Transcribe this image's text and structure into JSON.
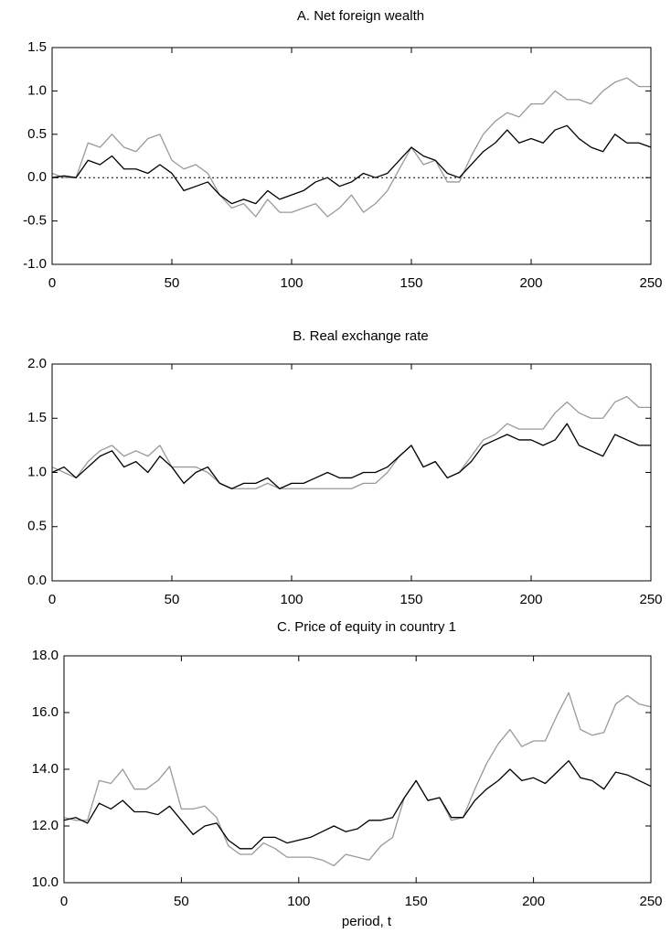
{
  "chart_data": [
    {
      "type": "line",
      "title": "A. Net foreign wealth",
      "x": [
        0,
        5,
        10,
        15,
        20,
        25,
        30,
        35,
        40,
        45,
        50,
        55,
        60,
        65,
        70,
        75,
        80,
        85,
        90,
        95,
        100,
        105,
        110,
        115,
        120,
        125,
        130,
        135,
        140,
        145,
        150,
        155,
        160,
        165,
        170,
        175,
        180,
        185,
        190,
        195,
        200,
        205,
        210,
        215,
        220,
        225,
        230,
        235,
        240,
        245,
        250
      ],
      "series": [
        {
          "color": "#999999",
          "values": [
            0.05,
            0.0,
            0.0,
            0.4,
            0.35,
            0.5,
            0.35,
            0.3,
            0.45,
            0.5,
            0.2,
            0.1,
            0.15,
            0.05,
            -0.2,
            -0.35,
            -0.3,
            -0.45,
            -0.25,
            -0.4,
            -0.4,
            -0.35,
            -0.3,
            -0.45,
            -0.35,
            -0.2,
            -0.4,
            -0.3,
            -0.15,
            0.1,
            0.35,
            0.15,
            0.2,
            -0.05,
            -0.05,
            0.25,
            0.5,
            0.65,
            0.75,
            0.7,
            0.85,
            0.85,
            1.0,
            0.9,
            0.9,
            0.85,
            1.0,
            1.1,
            1.15,
            1.05,
            1.05
          ]
        },
        {
          "color": "#000000",
          "values": [
            0,
            0.02,
            0.0,
            0.2,
            0.15,
            0.25,
            0.1,
            0.1,
            0.05,
            0.15,
            0.05,
            -0.15,
            -0.1,
            -0.05,
            -0.2,
            -0.3,
            -0.25,
            -0.3,
            -0.15,
            -0.25,
            -0.2,
            -0.15,
            -0.05,
            0.0,
            -0.1,
            -0.05,
            0.05,
            0.0,
            0.05,
            0.2,
            0.35,
            0.25,
            0.2,
            0.05,
            0.0,
            0.15,
            0.3,
            0.4,
            0.55,
            0.4,
            0.45,
            0.4,
            0.55,
            0.6,
            0.45,
            0.35,
            0.3,
            0.5,
            0.4,
            0.4,
            0.35
          ]
        }
      ],
      "reference_line": 0,
      "xlim": [
        0,
        250
      ],
      "xticks": [
        0,
        50,
        100,
        150,
        200,
        250
      ],
      "ylim": [
        -1,
        1.5
      ],
      "yticks": [
        {
          "value": -1,
          "label": "-1.0"
        },
        -0.5,
        {
          "value": 0,
          "label": "0.0"
        },
        0.5,
        {
          "value": 1,
          "label": "1.0"
        },
        1.5
      ]
    },
    {
      "type": "line",
      "title": "B. Real exchange rate",
      "x": [
        0,
        5,
        10,
        15,
        20,
        25,
        30,
        35,
        40,
        45,
        50,
        55,
        60,
        65,
        70,
        75,
        80,
        85,
        90,
        95,
        100,
        105,
        110,
        115,
        120,
        125,
        130,
        135,
        140,
        145,
        150,
        155,
        160,
        165,
        170,
        175,
        180,
        185,
        190,
        195,
        200,
        205,
        210,
        215,
        220,
        225,
        230,
        235,
        240,
        245,
        250
      ],
      "series": [
        {
          "color": "#999999",
          "values": [
            1.05,
            1.0,
            0.95,
            1.1,
            1.2,
            1.25,
            1.15,
            1.2,
            1.15,
            1.25,
            1.05,
            1.05,
            1.05,
            1.0,
            0.9,
            0.85,
            0.85,
            0.85,
            0.9,
            0.85,
            0.85,
            0.85,
            0.85,
            0.85,
            0.85,
            0.85,
            0.9,
            0.9,
            1.0,
            1.15,
            1.25,
            1.05,
            1.1,
            0.95,
            1.0,
            1.15,
            1.3,
            1.35,
            1.45,
            1.4,
            1.4,
            1.4,
            1.55,
            1.65,
            1.55,
            1.5,
            1.5,
            1.65,
            1.7,
            1.6,
            1.6
          ]
        },
        {
          "color": "#000000",
          "values": [
            1.0,
            1.05,
            0.95,
            1.05,
            1.15,
            1.2,
            1.05,
            1.1,
            1.0,
            1.15,
            1.05,
            0.9,
            1.0,
            1.05,
            0.9,
            0.85,
            0.9,
            0.9,
            0.95,
            0.85,
            0.9,
            0.9,
            0.95,
            1.0,
            0.95,
            0.95,
            1.0,
            1.0,
            1.05,
            1.15,
            1.25,
            1.05,
            1.1,
            0.95,
            1.0,
            1.1,
            1.25,
            1.3,
            1.35,
            1.3,
            1.3,
            1.25,
            1.3,
            1.45,
            1.25,
            1.2,
            1.15,
            1.35,
            1.3,
            1.25,
            1.25
          ]
        }
      ],
      "xlim": [
        0,
        250
      ],
      "xticks": [
        0,
        50,
        100,
        150,
        200,
        250
      ],
      "ylim": [
        0,
        2
      ],
      "yticks": [
        {
          "value": 0,
          "label": "0.0"
        },
        0.5,
        {
          "value": 1,
          "label": "1.0"
        },
        1.5,
        {
          "value": 2,
          "label": "2.0"
        }
      ]
    },
    {
      "type": "line",
      "title": "C. Price of equity in country 1",
      "x_label": "period, t",
      "x": [
        0,
        5,
        10,
        15,
        20,
        25,
        30,
        35,
        40,
        45,
        50,
        55,
        60,
        65,
        70,
        75,
        80,
        85,
        90,
        95,
        100,
        105,
        110,
        115,
        120,
        125,
        130,
        135,
        140,
        145,
        150,
        155,
        160,
        165,
        170,
        175,
        180,
        185,
        190,
        195,
        200,
        205,
        210,
        215,
        220,
        225,
        230,
        235,
        240,
        245,
        250
      ],
      "series": [
        {
          "color": "#999999",
          "values": [
            12.3,
            12.2,
            12.2,
            13.6,
            13.5,
            14.0,
            13.3,
            13.3,
            13.6,
            14.1,
            12.6,
            12.6,
            12.7,
            12.3,
            11.3,
            11.0,
            11.0,
            11.4,
            11.2,
            10.9,
            10.9,
            10.9,
            10.8,
            10.6,
            11.0,
            10.9,
            10.8,
            11.3,
            11.6,
            13.0,
            13.6,
            12.9,
            13.0,
            12.2,
            12.3,
            13.3,
            14.2,
            14.9,
            15.4,
            14.8,
            15.0,
            15.0,
            15.9,
            16.7,
            15.4,
            15.2,
            15.3,
            16.3,
            16.6,
            16.3,
            16.2
          ]
        },
        {
          "color": "#000000",
          "values": [
            12.2,
            12.3,
            12.1,
            12.8,
            12.6,
            12.9,
            12.5,
            12.5,
            12.4,
            12.7,
            12.2,
            11.7,
            12.0,
            12.1,
            11.5,
            11.2,
            11.2,
            11.6,
            11.6,
            11.4,
            11.5,
            11.6,
            11.8,
            12.0,
            11.8,
            11.9,
            12.2,
            12.2,
            12.3,
            13.0,
            13.6,
            12.9,
            13.0,
            12.3,
            12.3,
            12.9,
            13.3,
            13.6,
            14.0,
            13.6,
            13.7,
            13.5,
            13.9,
            14.3,
            13.7,
            13.6,
            13.3,
            13.9,
            13.8,
            13.6,
            13.4
          ]
        }
      ],
      "xlim": [
        0,
        250
      ],
      "xticks": [
        0,
        50,
        100,
        150,
        200,
        250
      ],
      "ylim": [
        10,
        18
      ],
      "yticks": [
        {
          "value": 10,
          "label": "10.0"
        },
        {
          "value": 12,
          "label": "12.0"
        },
        {
          "value": 14,
          "label": "14.0"
        },
        {
          "value": 16,
          "label": "16.0"
        },
        {
          "value": 18,
          "label": "18.0"
        }
      ]
    }
  ]
}
